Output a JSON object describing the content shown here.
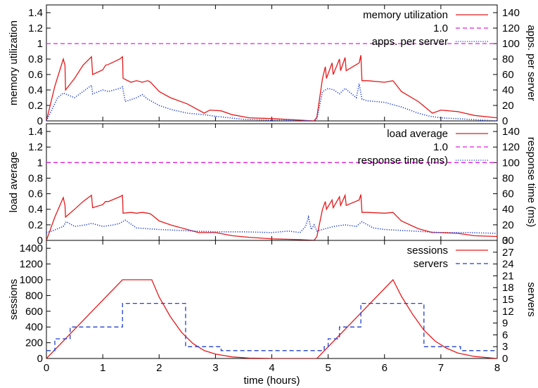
{
  "chart_data": [
    {
      "type": "line",
      "xlim": [
        0,
        8
      ],
      "x_ticks": [
        "0",
        "1",
        "2",
        "3",
        "4",
        "5",
        "6",
        "7",
        "8"
      ],
      "ylabel": "memory utilization",
      "ylim": [
        0,
        1.5
      ],
      "y_ticks": [
        "0",
        "0.2",
        "0.4",
        "0.6",
        "0.8",
        "1",
        "1.2",
        "1.4"
      ],
      "y2label": "apps. per server",
      "y2lim": [
        0,
        150
      ],
      "y2_ticks": [
        "0",
        "20",
        "40",
        "60",
        "80",
        "100",
        "120",
        "140"
      ],
      "legend_position": "top-right",
      "series": [
        {
          "name": "memory utilization",
          "axis": "left",
          "color": "#e41a1c",
          "dash": "solid",
          "x": [
            0,
            0.15,
            0.3,
            0.33,
            0.34,
            0.5,
            0.65,
            0.8,
            0.82,
            1.0,
            1.05,
            1.1,
            1.3,
            1.35,
            1.36,
            1.5,
            1.6,
            1.7,
            1.8,
            1.85,
            2.0,
            2.2,
            2.5,
            2.8,
            2.9,
            3.1,
            3.3,
            3.6,
            4.0,
            4.5,
            4.75,
            4.8,
            4.9,
            4.95,
            4.97,
            5.07,
            5.09,
            5.2,
            5.22,
            5.3,
            5.32,
            5.55,
            5.58,
            5.6,
            5.7,
            6.0,
            6.15,
            6.3,
            6.6,
            6.85,
            7.0,
            7.3,
            7.6,
            8.0
          ],
          "y": [
            0.0,
            0.45,
            0.8,
            0.72,
            0.4,
            0.55,
            0.72,
            0.83,
            0.6,
            0.66,
            0.72,
            0.73,
            0.8,
            0.83,
            0.55,
            0.5,
            0.52,
            0.5,
            0.52,
            0.5,
            0.38,
            0.3,
            0.22,
            0.1,
            0.14,
            0.13,
            0.08,
            0.04,
            0.03,
            0.01,
            0.0,
            0.05,
            0.55,
            0.7,
            0.55,
            0.75,
            0.6,
            0.8,
            0.65,
            0.82,
            0.65,
            0.75,
            0.85,
            0.52,
            0.52,
            0.5,
            0.52,
            0.38,
            0.25,
            0.1,
            0.14,
            0.12,
            0.07,
            0.04
          ]
        },
        {
          "name": "1.0",
          "axis": "left",
          "color": "#e020e0",
          "dash": "dashed",
          "x": [
            0,
            8
          ],
          "y": [
            1.0,
            1.0
          ]
        },
        {
          "name": "apps. per server",
          "axis": "right",
          "color": "#1f3fd0",
          "dash": "dotted",
          "x": [
            0,
            0.2,
            0.3,
            0.5,
            0.8,
            0.82,
            1.0,
            1.1,
            1.3,
            1.35,
            1.4,
            1.6,
            1.7,
            1.8,
            2.0,
            2.2,
            2.5,
            2.8,
            3.0,
            3.5,
            4.0,
            4.75,
            4.8,
            4.9,
            5.0,
            5.1,
            5.2,
            5.3,
            5.5,
            5.55,
            5.6,
            5.7,
            6.0,
            6.3,
            6.6,
            6.8,
            7.0,
            7.5,
            8.0
          ],
          "y": [
            0,
            30,
            36,
            30,
            46,
            35,
            40,
            38,
            42,
            44,
            25,
            30,
            34,
            28,
            20,
            15,
            10,
            8,
            6,
            2,
            1,
            0,
            2,
            38,
            42,
            40,
            35,
            42,
            30,
            48,
            28,
            26,
            24,
            18,
            10,
            6,
            4,
            2,
            0
          ]
        }
      ]
    },
    {
      "type": "line",
      "xlim": [
        0,
        8
      ],
      "x_ticks": [
        "0",
        "1",
        "2",
        "3",
        "4",
        "5",
        "6",
        "7",
        "8"
      ],
      "ylabel": "load average",
      "ylim": [
        0,
        1.5
      ],
      "y_ticks": [
        "0",
        "0.2",
        "0.4",
        "0.6",
        "0.8",
        "1",
        "1.2",
        "1.4"
      ],
      "y2label": "response time (ms)",
      "y2lim": [
        0,
        150
      ],
      "y2_ticks": [
        "0",
        "20",
        "40",
        "60",
        "80",
        "100",
        "120",
        "140"
      ],
      "legend_position": "top-right",
      "series": [
        {
          "name": "load average",
          "axis": "left",
          "color": "#e41a1c",
          "dash": "solid",
          "x": [
            0,
            0.15,
            0.3,
            0.33,
            0.34,
            0.5,
            0.65,
            0.8,
            0.82,
            1.0,
            1.05,
            1.1,
            1.3,
            1.35,
            1.36,
            1.5,
            1.6,
            1.7,
            1.8,
            1.85,
            2.0,
            2.2,
            2.5,
            2.7,
            3.0,
            3.3,
            3.6,
            4.0,
            4.5,
            4.75,
            4.8,
            4.9,
            4.95,
            4.97,
            5.07,
            5.09,
            5.2,
            5.22,
            5.3,
            5.32,
            5.55,
            5.58,
            5.6,
            5.7,
            6.0,
            6.15,
            6.3,
            6.6,
            6.85,
            7.0,
            7.3,
            7.6,
            8.0
          ],
          "y": [
            0.0,
            0.3,
            0.55,
            0.45,
            0.3,
            0.4,
            0.5,
            0.58,
            0.42,
            0.46,
            0.5,
            0.5,
            0.56,
            0.58,
            0.35,
            0.36,
            0.35,
            0.36,
            0.35,
            0.34,
            0.25,
            0.2,
            0.14,
            0.1,
            0.1,
            0.06,
            0.04,
            0.02,
            0.01,
            0.0,
            0.05,
            0.4,
            0.5,
            0.4,
            0.52,
            0.42,
            0.56,
            0.45,
            0.58,
            0.45,
            0.52,
            0.59,
            0.36,
            0.36,
            0.35,
            0.36,
            0.25,
            0.15,
            0.1,
            0.1,
            0.09,
            0.06,
            0.05
          ]
        },
        {
          "name": "1.0",
          "axis": "left",
          "color": "#e020e0",
          "dash": "dashed",
          "x": [
            0,
            8
          ],
          "y": [
            1.0,
            1.0
          ]
        },
        {
          "name": "response time (ms)",
          "axis": "right",
          "color": "#1f3fd0",
          "dash": "dotted",
          "x": [
            0,
            0.1,
            0.2,
            0.3,
            0.35,
            0.5,
            0.7,
            0.8,
            1.0,
            1.2,
            1.3,
            1.4,
            1.6,
            1.8,
            2.0,
            2.3,
            2.6,
            3.0,
            3.5,
            4.0,
            4.3,
            4.5,
            4.6,
            4.65,
            4.7,
            4.75,
            4.8,
            4.9,
            5.1,
            5.3,
            5.5,
            5.6,
            5.8,
            6.0,
            6.5,
            7.0,
            7.5,
            8.0
          ],
          "y": [
            10,
            12,
            15,
            18,
            24,
            18,
            20,
            22,
            18,
            20,
            22,
            26,
            16,
            15,
            14,
            13,
            12,
            11,
            11,
            10,
            12,
            10,
            18,
            30,
            14,
            20,
            12,
            14,
            18,
            20,
            18,
            24,
            16,
            14,
            12,
            10,
            10,
            9
          ]
        }
      ]
    },
    {
      "type": "line",
      "xlim": [
        0,
        8
      ],
      "xlabel": "time (hours)",
      "x_ticks": [
        "0",
        "1",
        "2",
        "3",
        "4",
        "5",
        "6",
        "7",
        "8"
      ],
      "ylabel": "sessions",
      "ylim": [
        0,
        1500
      ],
      "y_ticks": [
        "0",
        "200",
        "400",
        "600",
        "800",
        "1000",
        "1200",
        "1400"
      ],
      "y2label": "servers",
      "y2lim": [
        0,
        30
      ],
      "y2_ticks": [
        "0",
        "3",
        "6",
        "9",
        "12",
        "15",
        "18",
        "21",
        "24",
        "27",
        "30"
      ],
      "legend_position": "top-right",
      "series": [
        {
          "name": "sessions",
          "axis": "left",
          "color": "#e41a1c",
          "dash": "solid",
          "x": [
            0,
            1.35,
            1.87,
            2.0,
            2.2,
            2.4,
            2.6,
            2.8,
            3.0,
            3.3,
            3.6,
            4.0,
            4.8,
            6.15,
            6.3,
            6.5,
            6.7,
            6.9,
            7.1,
            7.3,
            7.6,
            8.0
          ],
          "y": [
            0,
            1000,
            1000,
            780,
            530,
            330,
            190,
            100,
            55,
            20,
            5,
            0,
            0,
            1000,
            790,
            560,
            360,
            220,
            130,
            70,
            25,
            0
          ],
          "note": "second rise starts near x=4.75 from y=0"
        },
        {
          "name": "servers",
          "axis": "right",
          "color": "#1f3fd0",
          "dash": "dashed",
          "x": [
            0,
            0.15,
            0.15,
            0.42,
            0.42,
            0.8,
            0.8,
            1.35,
            1.35,
            2.47,
            2.47,
            3.1,
            3.1,
            4.93,
            4.93,
            5.0,
            5.0,
            5.2,
            5.2,
            5.58,
            5.58,
            6.7,
            6.7,
            7.35,
            7.35,
            8.0
          ],
          "y": [
            2,
            2,
            5,
            5,
            8,
            8,
            8,
            8,
            14,
            14,
            3,
            3,
            2,
            2,
            3,
            3,
            5,
            5,
            8,
            8,
            14,
            14,
            3,
            3,
            2,
            2
          ]
        }
      ]
    }
  ]
}
